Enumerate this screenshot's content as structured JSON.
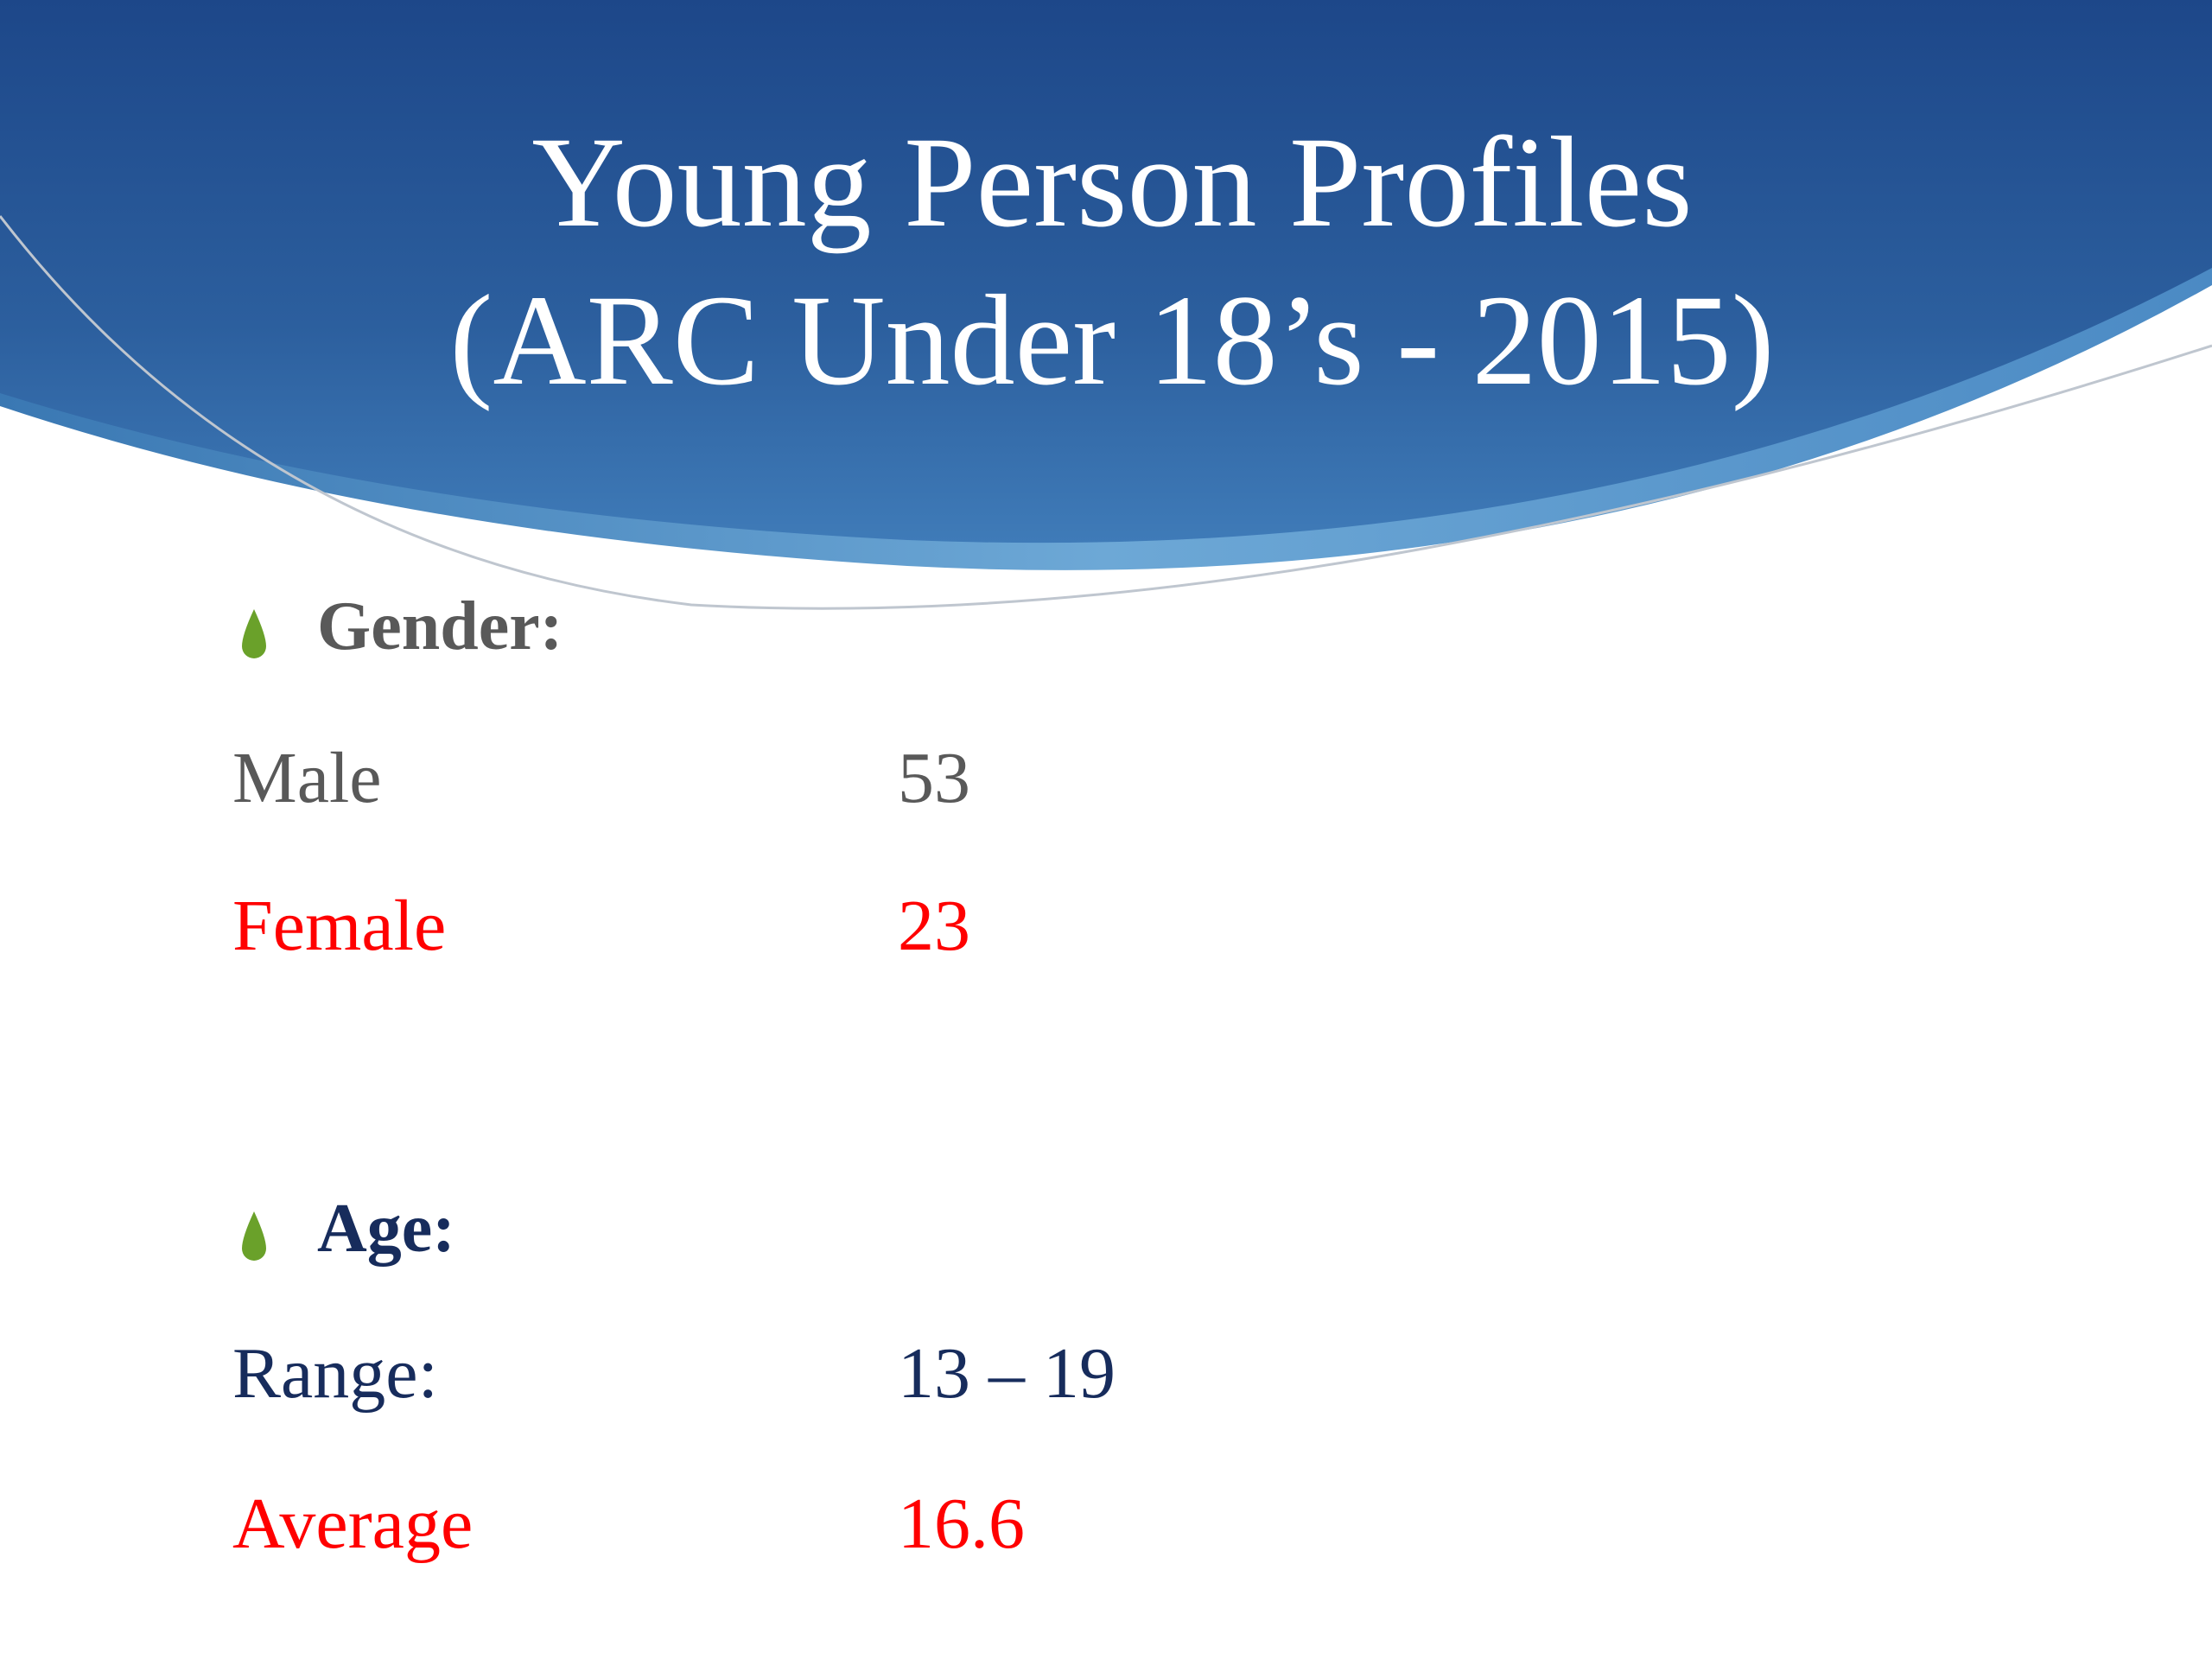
{
  "title": {
    "line1": "Young Person Profiles",
    "line2": "(ARC Under 18’s - 2015)"
  },
  "sections": [
    {
      "heading": "Gender:",
      "rows": [
        [
          "Male",
          53
        ],
        [
          "Female",
          23
        ]
      ]
    },
    {
      "heading": "Age:",
      "rows": [
        [
          "Range:",
          "13 – 19"
        ],
        [
          "Average",
          16.6
        ]
      ]
    }
  ]
}
